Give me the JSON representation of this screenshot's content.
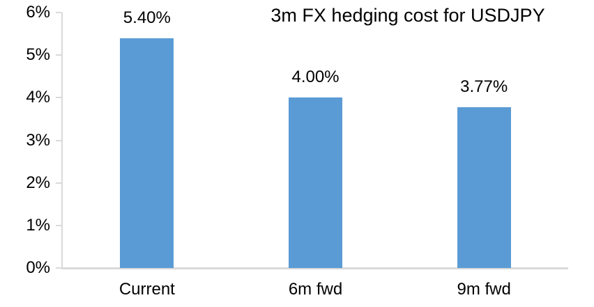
{
  "title": "3m FX hedging cost for USDJPY",
  "colors": {
    "bar": "#5B9BD5",
    "axis": "#D9D9D9",
    "text": "#000000",
    "background": "#FFFFFF"
  },
  "chart_data": {
    "type": "bar",
    "title": "3m FX hedging cost for USDJPY",
    "categories": [
      "Current",
      "6m fwd",
      "9m fwd"
    ],
    "values": [
      5.4,
      4.0,
      3.77
    ],
    "data_labels": [
      "5.40%",
      "4.00%",
      "3.77%"
    ],
    "xlabel": "",
    "ylabel": "",
    "ylim": [
      0,
      6
    ],
    "ytick_step": 1,
    "ytick_labels": [
      "0%",
      "1%",
      "2%",
      "3%",
      "4%",
      "5%",
      "6%"
    ],
    "grid": false,
    "legend_position": "none",
    "bar_color": "#5B9BD5"
  }
}
